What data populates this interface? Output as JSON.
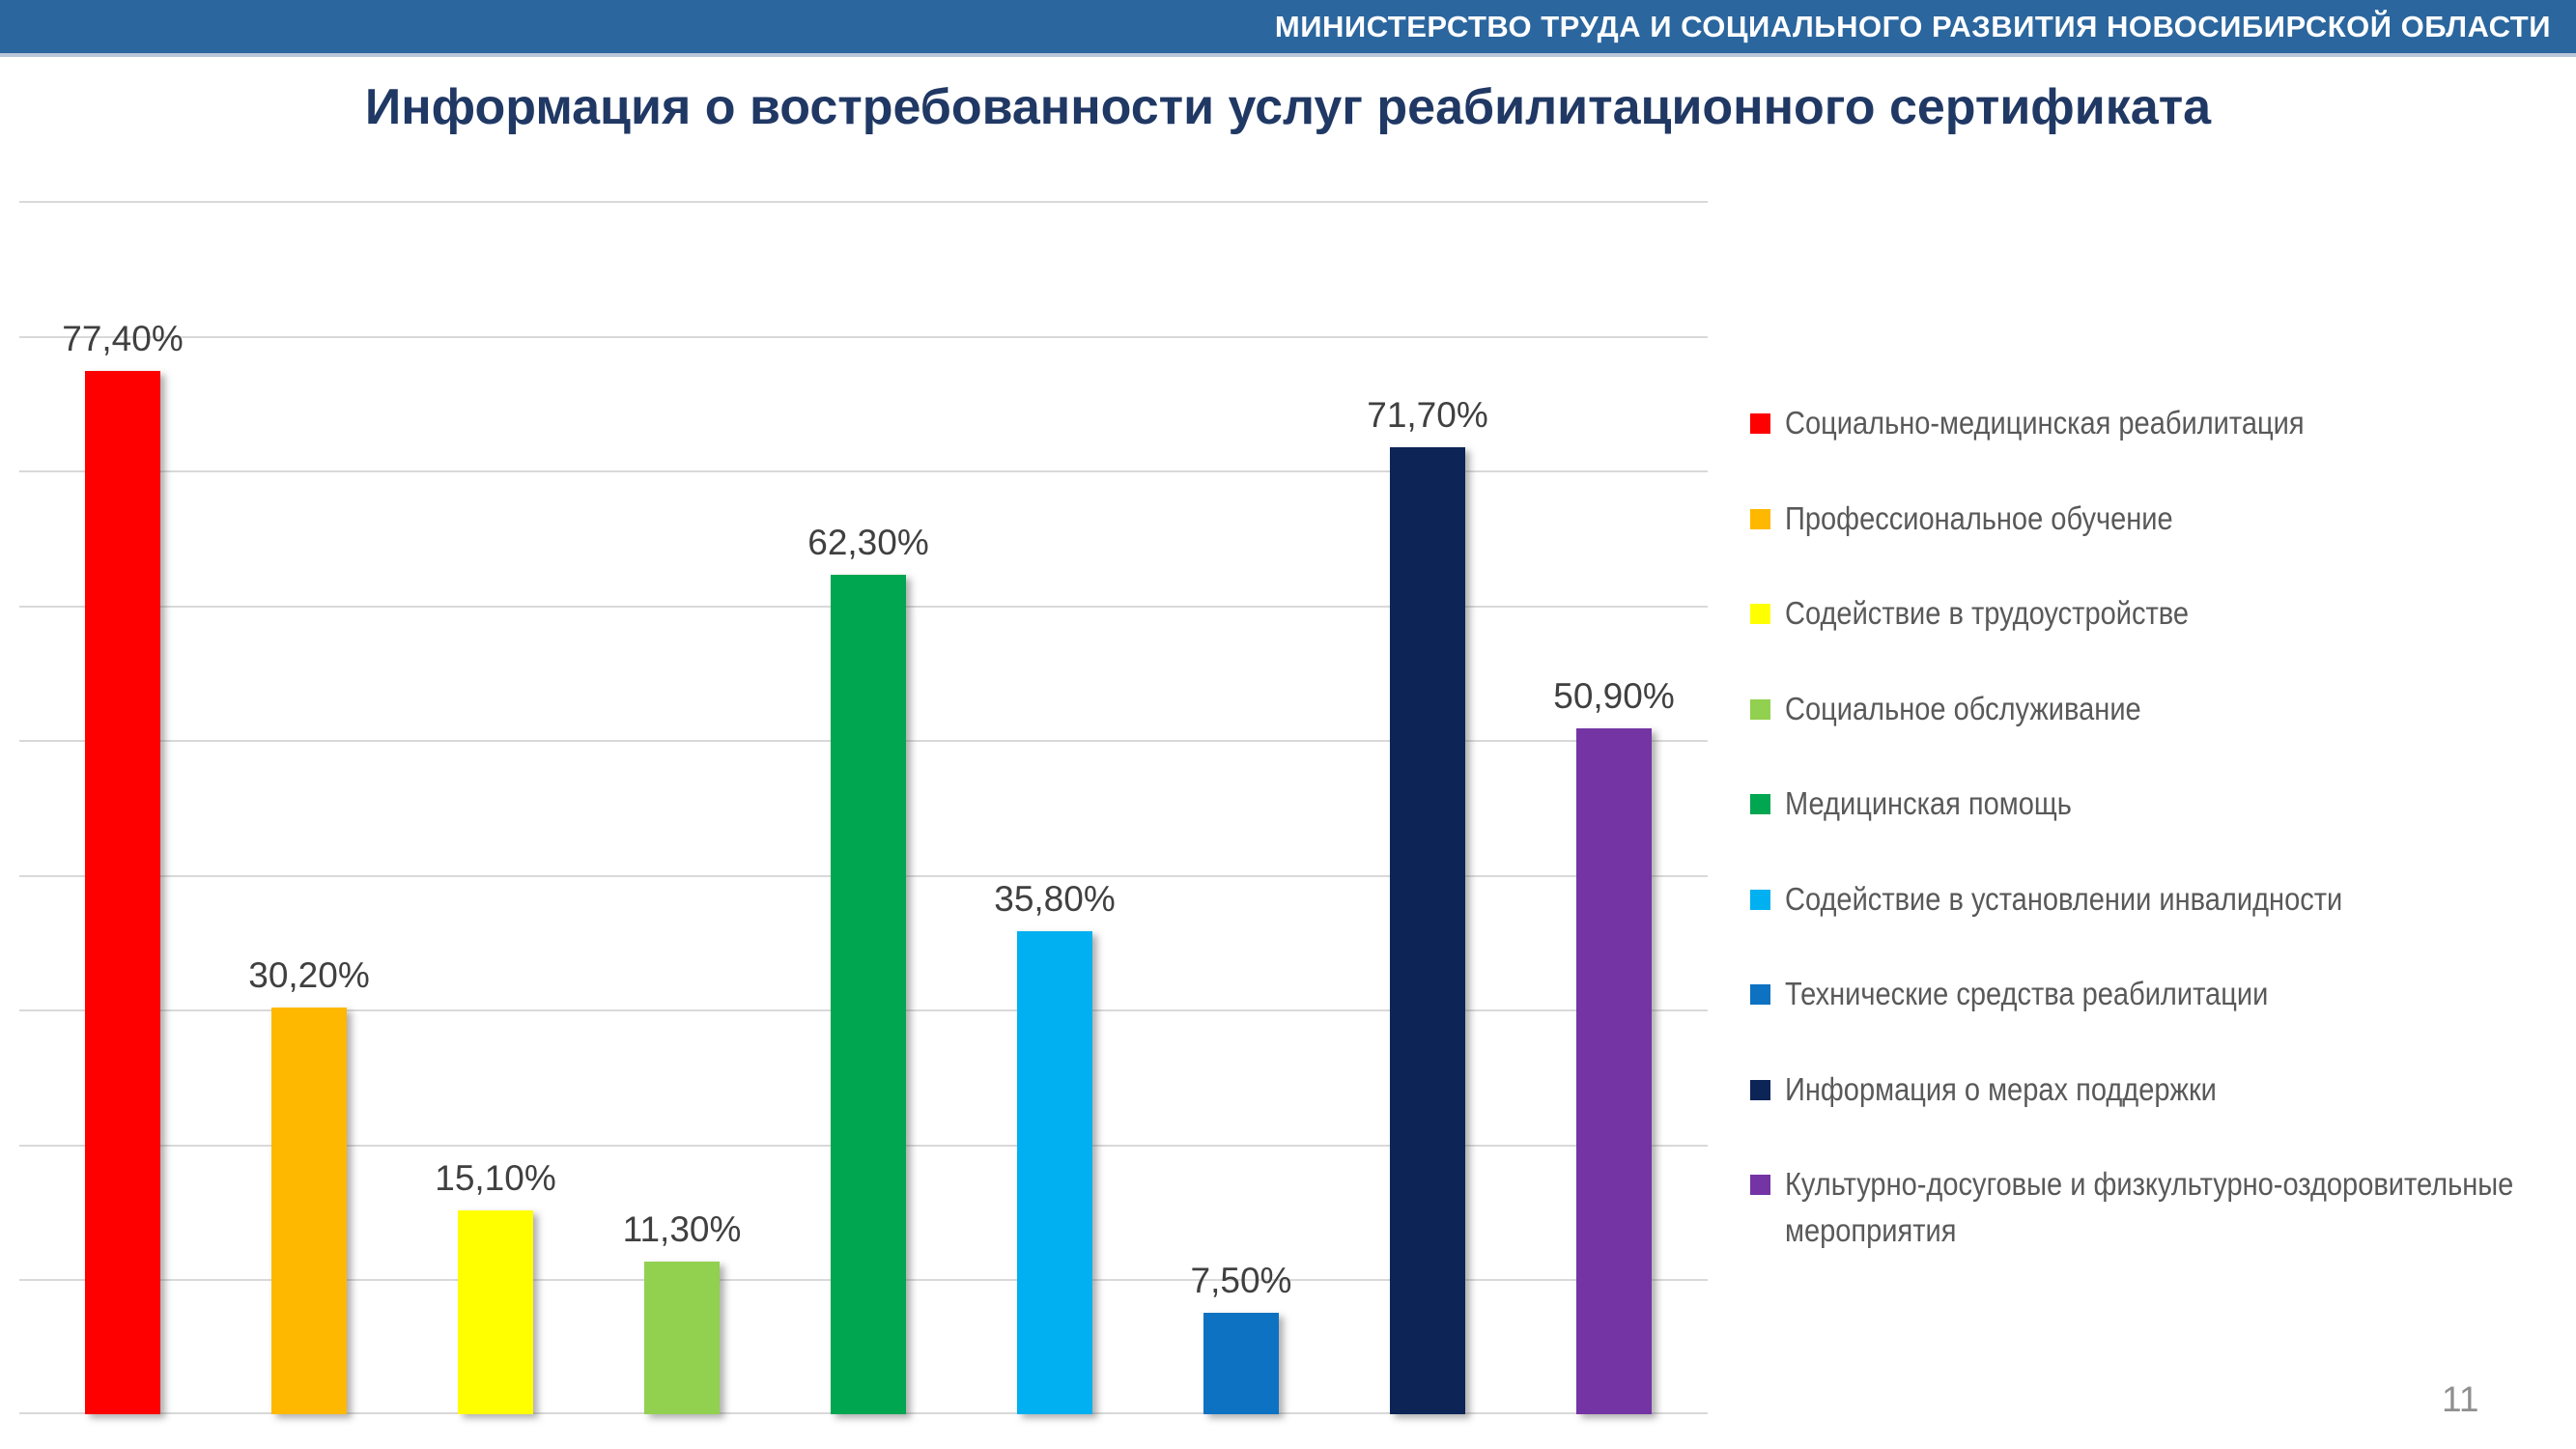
{
  "header": {
    "title": "МИНИСТЕРСТВО ТРУДА И СОЦИАЛЬНОГО РАЗВИТИЯ НОВОСИБИРСКОЙ ОБЛАСТИ",
    "background_color": "#2B669E",
    "text_color": "#FFFFFF"
  },
  "title": "Информация о востребованности услуг реабилитационного сертификата",
  "title_color": "#203864",
  "page_number": "11",
  "chart_data": {
    "type": "bar",
    "title": "Информация о востребованности услуг реабилитационного сертификата",
    "categories": [
      "Социально-медицинская реабилитация",
      "Профессиональное обучение",
      "Содействие в трудоустройстве",
      "Социальное обслуживание",
      "Медицинская помощь",
      "Содействие в установлении инвалидности",
      "Технические средства реабилитации",
      "Информация о мерах поддержки",
      "Культурно-досуговые и физкультурно-оздоровительные мероприятия"
    ],
    "values": [
      77.4,
      30.2,
      15.1,
      11.3,
      62.3,
      35.8,
      7.5,
      71.7,
      50.9
    ],
    "value_labels": [
      "77,40%",
      "30,20%",
      "15,10%",
      "11,30%",
      "62,30%",
      "35,80%",
      "7,50%",
      "71,70%",
      "50,90%"
    ],
    "colors": [
      "#FF0000",
      "#FFB800",
      "#FFFF00",
      "#92D050",
      "#00A650",
      "#00B0F0",
      "#0E72C2",
      "#0D2456",
      "#7434A4"
    ],
    "xlabel": "",
    "ylabel": "",
    "ylim": [
      0,
      90
    ],
    "grid": true,
    "gridline_step": 10,
    "gridline_color": "#D9D9D9",
    "x_axis_tick_labels": "hidden",
    "y_axis_tick_labels": "hidden",
    "data_label_color": "#404040",
    "legend_position": "right",
    "legend_text_color": "#595959",
    "legend": [
      {
        "color": "#FF0000",
        "lines": [
          "Социально-медицинская реабилитация"
        ]
      },
      {
        "color": "#FFB800",
        "lines": [
          "Профессиональное обучение"
        ]
      },
      {
        "color": "#FFFF00",
        "lines": [
          "Содействие в трудоустройстве"
        ]
      },
      {
        "color": "#92D050",
        "lines": [
          "Социальное обслуживание"
        ]
      },
      {
        "color": "#00A650",
        "lines": [
          "Медицинская помощь"
        ]
      },
      {
        "color": "#00B0F0",
        "lines": [
          "Содействие в установлении инвалидности"
        ]
      },
      {
        "color": "#0E72C2",
        "lines": [
          "Технические средства реабилитации"
        ]
      },
      {
        "color": "#0D2456",
        "lines": [
          "Информация о мерах поддержки"
        ]
      },
      {
        "color": "#7434A4",
        "lines": [
          "Культурно-досуговые и физкультурно-оздоровительные",
          "мероприятия"
        ]
      }
    ]
  }
}
